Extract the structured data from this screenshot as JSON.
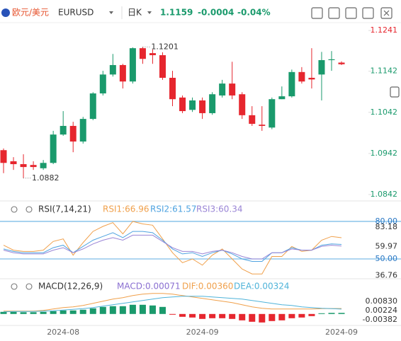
{
  "header": {
    "name": "欧元/美元",
    "symbol": "EURUSD",
    "period": "日K",
    "price": "1.1159",
    "change": "-0.0004",
    "change_pct": "-0.04%"
  },
  "chart_data": [
    {
      "type": "candlestick",
      "categories": [
        null,
        null,
        null,
        null,
        null,
        null,
        "2024-08",
        null,
        null,
        null,
        null,
        null,
        null,
        null,
        null,
        null,
        null,
        null,
        null,
        null,
        "2024-09",
        null,
        null,
        null,
        null,
        null,
        null,
        null,
        null,
        null,
        null,
        null,
        null,
        null,
        "2024-09"
      ],
      "open": [
        1.095,
        1.0923,
        1.0916,
        1.0914,
        1.0906,
        1.0919,
        1.0988,
        1.1009,
        1.0971,
        1.1026,
        1.1088,
        1.1134,
        1.1157,
        1.1117,
        1.1198,
        1.1186,
        1.1181,
        1.1126,
        1.1078,
        1.1048,
        1.1071,
        1.104,
        1.1083,
        1.1112,
        1.1086,
        1.1035,
        1.1012,
        1.1005,
        1.1074,
        1.1081,
        1.114,
        1.1126,
        1.1134,
        1.1169,
        1.1163
      ],
      "close": [
        1.0919,
        1.0916,
        1.0909,
        1.0909,
        1.0919,
        1.0988,
        1.1009,
        1.0971,
        1.1026,
        1.1088,
        1.1134,
        1.1157,
        1.1117,
        1.1198,
        1.1172,
        1.1181,
        1.1126,
        1.1074,
        1.1045,
        1.1071,
        1.104,
        1.1086,
        1.1112,
        1.1083,
        1.1035,
        1.1014,
        1.1009,
        1.1074,
        1.1081,
        1.114,
        1.1117,
        1.1122,
        1.1169,
        1.1171,
        1.1159
      ],
      "high": [
        1.0954,
        1.0933,
        1.094,
        1.0923,
        1.0926,
        1.0997,
        1.1045,
        1.1019,
        1.1031,
        1.1091,
        1.1143,
        1.1184,
        1.116,
        1.12,
        1.1201,
        1.1195,
        1.1188,
        1.1143,
        1.1083,
        1.1078,
        1.1078,
        1.1091,
        1.1121,
        1.1165,
        1.1091,
        1.1057,
        1.1057,
        1.1078,
        1.1105,
        1.1146,
        1.1152,
        1.1198,
        1.1189,
        1.1191,
        1.1166
      ],
      "low": [
        1.0894,
        1.0902,
        1.0882,
        1.0902,
        1.0902,
        1.0916,
        1.0985,
        1.0945,
        1.0966,
        1.1023,
        1.1083,
        1.1129,
        1.11,
        1.1112,
        1.116,
        1.116,
        1.1121,
        1.1057,
        1.104,
        1.1043,
        1.1026,
        1.1036,
        1.1078,
        1.1074,
        1.1026,
        1.1009,
        1.0997,
        1.1001,
        1.1074,
        1.1078,
        1.1112,
        1.11,
        1.1071,
        1.1143,
        1.1157
      ],
      "up_color": "#1a9a6c",
      "down_color": "#e6262e",
      "ylim": [
        1.083,
        1.1255
      ],
      "yticks": [
        1.1241,
        1.1142,
        1.1042,
        1.0942,
        1.0842
      ],
      "annotations": [
        "1.1201",
        "1.0882"
      ]
    },
    {
      "type": "line",
      "title": "RSI(7,14,21)",
      "series": [
        {
          "name": "RSI1:66.96",
          "color": "#f0a04b",
          "values": [
            61,
            57,
            56,
            56,
            57,
            64,
            66,
            53,
            63,
            72,
            76,
            79,
            70,
            80,
            78,
            77,
            66,
            55,
            47,
            50,
            45,
            53,
            58,
            50,
            42,
            38,
            38,
            52,
            52,
            60,
            56,
            57,
            65,
            68,
            66.96
          ]
        },
        {
          "name": "RSI2:61.57",
          "color": "#4fa3e0",
          "values": [
            58,
            56,
            55,
            55,
            55,
            59,
            61,
            55,
            60,
            65,
            68,
            71,
            67,
            72,
            72,
            71,
            65,
            58,
            54,
            55,
            52,
            55,
            57,
            54,
            50,
            48,
            48,
            55,
            55,
            59,
            57,
            57,
            61,
            62,
            61.57
          ]
        },
        {
          "name": "RSI3:60.34",
          "color": "#9a85d6",
          "values": [
            57,
            55,
            54,
            54,
            54,
            57,
            59,
            55,
            58,
            62,
            65,
            67,
            65,
            69,
            69,
            69,
            64,
            59,
            56,
            56,
            54,
            56,
            57,
            55,
            52,
            50,
            50,
            55,
            55,
            58,
            57,
            57,
            60,
            61,
            60.34
          ]
        }
      ],
      "ylim": [
        35.3,
        84.5
      ],
      "yticks": [
        {
          "value": 80,
          "label": "80.00"
        },
        {
          "value": 50,
          "label": "50.00"
        }
      ],
      "axis_labels": [
        83.18,
        59.97,
        36.76
      ]
    },
    {
      "type": "bar",
      "title": "MACD(12,26,9)",
      "label": "MACD:0.00071",
      "values": [
        0.0014,
        0.0014,
        0.00117,
        0.00117,
        0.0014,
        0.00186,
        0.00233,
        0.00233,
        0.0028,
        0.00373,
        0.00466,
        0.00513,
        0.00513,
        0.00606,
        0.00606,
        0.0056,
        0.00466,
        -0.00047,
        -0.00186,
        -0.00233,
        -0.00326,
        -0.0028,
        -0.0028,
        -0.00326,
        -0.0042,
        -0.00513,
        -0.0056,
        -0.00466,
        -0.0042,
        -0.0028,
        -0.00233,
        -0.0014,
        0.00047,
        0.00071,
        0.00071
      ],
      "up_color": "#1a9a6c",
      "down_color": "#e6262e",
      "series": [
        {
          "name": "DIF:0.00360",
          "color": "#f0a04b",
          "values": [
            0.00186,
            0.00186,
            0.00186,
            0.00186,
            0.00233,
            0.00326,
            0.00419,
            0.00466,
            0.00559,
            0.00699,
            0.00839,
            0.00979,
            0.01072,
            0.01212,
            0.01305,
            0.01351,
            0.01351,
            0.01305,
            0.01212,
            0.01118,
            0.01025,
            0.00932,
            0.00839,
            0.00746,
            0.00606,
            0.00466,
            0.00373,
            0.00326,
            0.00326,
            0.00326,
            0.00326,
            0.00326,
            0.0035,
            0.0036,
            0.0036
          ]
        },
        {
          "name": "DEA:0.00324",
          "color": "#4fb3d9",
          "values": [
            0.0014,
            0.00163,
            0.00163,
            0.00163,
            0.00186,
            0.0021,
            0.00256,
            0.00303,
            0.0035,
            0.00419,
            0.00513,
            0.00606,
            0.00699,
            0.00792,
            0.00885,
            0.00979,
            0.01072,
            0.01118,
            0.01165,
            0.01165,
            0.01165,
            0.01118,
            0.01072,
            0.01025,
            0.00979,
            0.00885,
            0.00792,
            0.00699,
            0.00606,
            0.00559,
            0.00466,
            0.00419,
            0.00373,
            0.0035,
            0.00324
          ]
        }
      ],
      "ylim": [
        -0.00755,
        0.02042
      ],
      "yticks": [
        {
          "value": 0.0083,
          "label": "0.00830"
        },
        0.00224,
        -0.00382
      ]
    }
  ]
}
